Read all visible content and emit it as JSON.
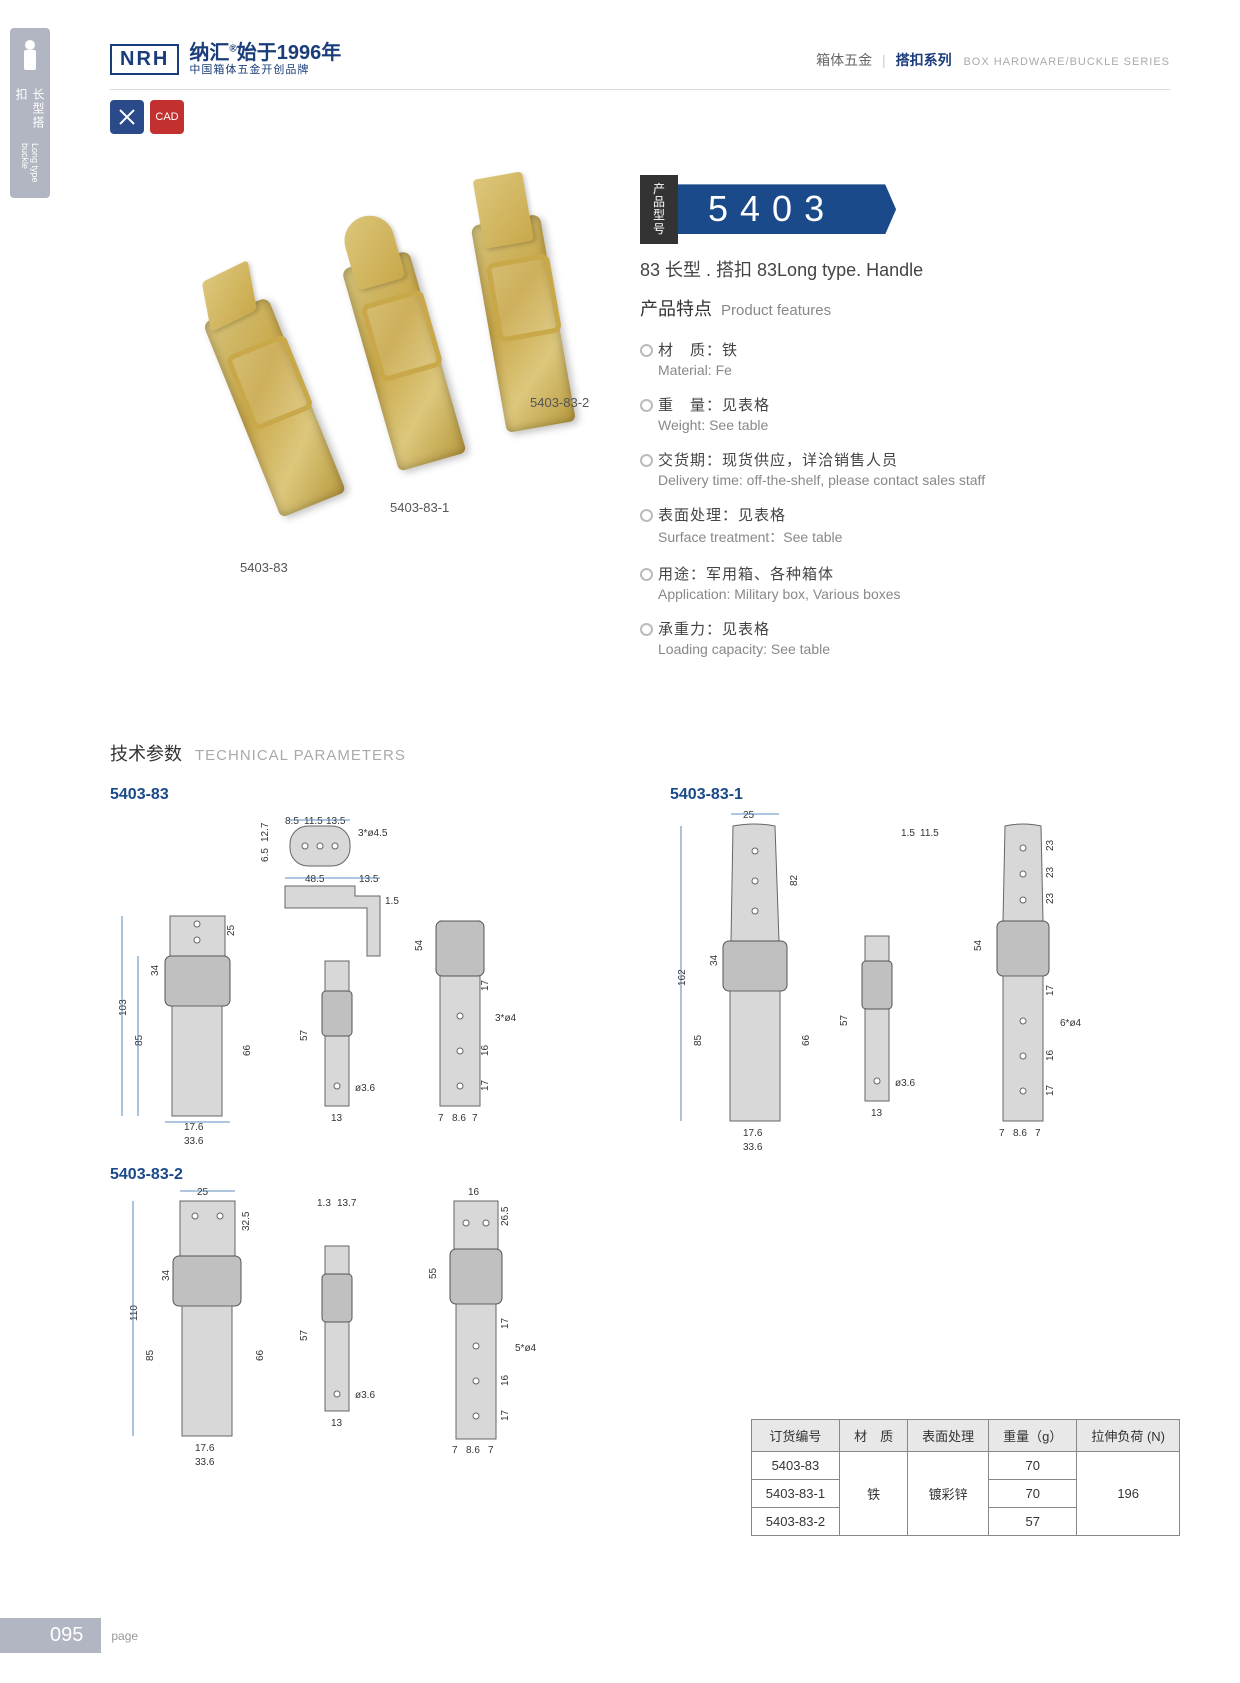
{
  "sidebar": {
    "label_cn": "长型搭扣",
    "label_en": "Long type buckle"
  },
  "header": {
    "logo_box": "NRH",
    "brand": "纳汇",
    "reg": "®",
    "since": "始于1996年",
    "slogan": "中国箱体五金开创品牌",
    "crumb_cn1": "箱体五金",
    "crumb_cn2": "搭扣系列",
    "crumb_en": "BOX HARDWARE/BUCKLE SERIES"
  },
  "badges": {
    "b1": "✕",
    "b2": "CAD"
  },
  "product_labels": {
    "p1": "5403-83",
    "p2": "5403-83-1",
    "p3": "5403-83-2"
  },
  "model": {
    "tag_l1": "产品",
    "tag_l2": "型号",
    "number": "5403",
    "subtitle": "83 长型 . 搭扣   83Long type. Handle"
  },
  "features_title_cn": "产品特点",
  "features_title_en": "Product features",
  "features": [
    {
      "cn": "材　质：铁",
      "en": "Material: Fe"
    },
    {
      "cn": "重　量：见表格",
      "en": "Weight: See table"
    },
    {
      "cn": "交货期：现货供应，详洽销售人员",
      "en": "Delivery time: off-the-shelf, please contact sales staff"
    },
    {
      "cn": "表面处理：见表格",
      "en": "Surface treatment：See table"
    },
    {
      "cn": "用途：军用箱、各种箱体",
      "en": "Application: Military box, Various boxes"
    },
    {
      "cn": "承重力：见表格",
      "en": "Loading capacity: See table"
    }
  ],
  "tech_title_cn": "技术参数",
  "tech_title_en": "TECHNICAL PARAMETERS",
  "diagrams": {
    "d1": "5403-83",
    "d2": "5403-83-1",
    "d3": "5403-83-2"
  },
  "dims": {
    "d1": {
      "top_w": [
        "8.5",
        "11.5",
        "13.5"
      ],
      "top_hole": "3*ø4.5",
      "top_h": [
        "12.7",
        "6.5"
      ],
      "arm": [
        "48.5",
        "13.5",
        "1.5"
      ],
      "main_h": [
        "103",
        "85",
        "34",
        "25",
        "66",
        "57"
      ],
      "main_w": [
        "17.6",
        "33.6"
      ],
      "side_h": [
        "54",
        "17",
        "16",
        "17"
      ],
      "side_w": [
        "13",
        "7",
        "8.6",
        "7"
      ],
      "side_hole": [
        "ø3.6",
        "3*ø4"
      ]
    },
    "d2": {
      "top_w": "25",
      "top_arm": [
        "1.5",
        "11.5"
      ],
      "main_h": [
        "162",
        "85",
        "82",
        "34",
        "66",
        "57"
      ],
      "main_w": [
        "17.6",
        "33.6",
        "13"
      ],
      "side_h": [
        "54",
        "23",
        "23",
        "23",
        "17",
        "17",
        "16"
      ],
      "side_w": [
        "7",
        "8.6",
        "7"
      ],
      "side_hole": [
        "ø3.6",
        "6*ø4"
      ]
    },
    "d3": {
      "top_w": "25",
      "top_arm": [
        "1.3",
        "13.7"
      ],
      "top_r": "16",
      "main_h": [
        "110",
        "85",
        "34",
        "32.5",
        "66",
        "57"
      ],
      "main_w": [
        "17.6",
        "33.6",
        "13"
      ],
      "side_h": [
        "55",
        "26.5",
        "17",
        "17",
        "16"
      ],
      "side_w": [
        "7",
        "8.6",
        "7"
      ],
      "side_hole": [
        "ø3.6",
        "5*ø4"
      ]
    }
  },
  "table": {
    "headers": [
      "订货编号",
      "材　质",
      "表面处理",
      "重量（g）",
      "拉伸负荷 (N)"
    ],
    "rows": [
      [
        "5403-83",
        "",
        "",
        "70",
        ""
      ],
      [
        "5403-83-1",
        "铁",
        "镀彩锌",
        "70",
        "196"
      ],
      [
        "5403-83-2",
        "",
        "",
        "57",
        ""
      ]
    ],
    "merge_col1": "铁",
    "merge_col2": "镀彩锌",
    "merge_col4": "196"
  },
  "footer": {
    "page": "095",
    "label": "page"
  }
}
